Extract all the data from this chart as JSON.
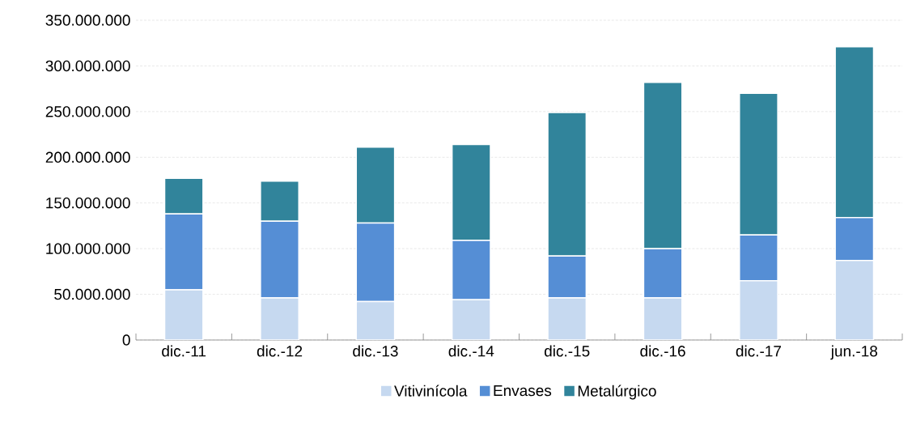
{
  "chart_data": {
    "type": "bar",
    "stacked": true,
    "categories": [
      "dic.-11",
      "dic.-12",
      "dic.-13",
      "dic.-14",
      "dic.-15",
      "dic.-16",
      "dic.-17",
      "jun.-18"
    ],
    "series": [
      {
        "name": "Vitivinícola",
        "color": "#c6d9f0",
        "values": [
          55000000,
          46000000,
          42000000,
          44000000,
          46000000,
          46000000,
          65000000,
          87000000
        ]
      },
      {
        "name": "Envases",
        "color": "#558ed5",
        "values": [
          83000000,
          84000000,
          86000000,
          65000000,
          46000000,
          54000000,
          50000000,
          47000000
        ]
      },
      {
        "name": "Metalúrgico",
        "color": "#31849b",
        "values": [
          39000000,
          44000000,
          83000000,
          105000000,
          157000000,
          182000000,
          155000000,
          187000000
        ]
      }
    ],
    "ylim": [
      0,
      350000000
    ],
    "yticks": [
      0,
      {
        "value": 50000000,
        "label": "50.000.000"
      },
      {
        "value": 100000000,
        "label": "100.000.000"
      },
      {
        "value": 150000000,
        "label": "150.000.000"
      },
      {
        "value": 200000000,
        "label": "200.000.000"
      },
      {
        "value": 250000000,
        "label": "250.000.000"
      },
      {
        "value": 300000000,
        "label": "300.000.000"
      },
      {
        "value": 350000000,
        "label": "350.000.000"
      }
    ],
    "grid": "y",
    "legend": "bottom"
  }
}
